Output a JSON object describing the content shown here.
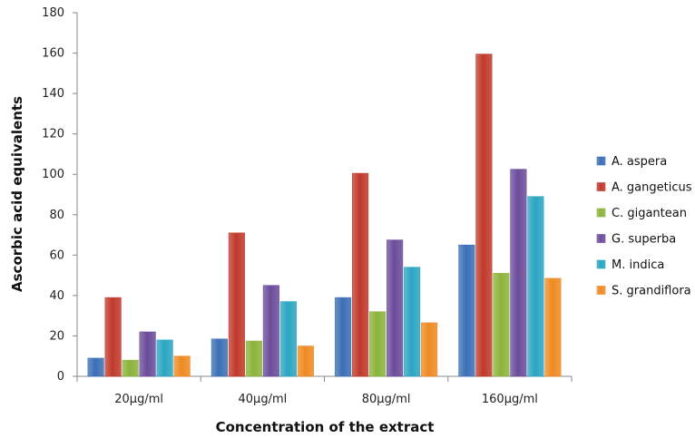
{
  "chart_data": {
    "type": "bar",
    "title": "",
    "xlabel": "Concentration of the extract",
    "ylabel": "Ascorbic acid equivalents",
    "categories": [
      "20µg/ml",
      "40µg/ml",
      "80µg/ml",
      "160µg/ml"
    ],
    "ylim": [
      0,
      180
    ],
    "yticks": [
      0,
      20,
      40,
      60,
      80,
      100,
      120,
      140,
      160,
      180
    ],
    "grid": false,
    "legend_position": "right",
    "series": [
      {
        "name": "A. aspera",
        "color": "#3b6fb6",
        "values": [
          9,
          18.5,
          39,
          65
        ]
      },
      {
        "name": "A. gangeticus",
        "color": "#c0392b",
        "values": [
          39,
          71,
          100.5,
          159.5
        ]
      },
      {
        "name": "C. gigantean",
        "color": "#8bb33a",
        "values": [
          8,
          17.5,
          32,
          51
        ]
      },
      {
        "name": "G. superba",
        "color": "#6b4c9a",
        "values": [
          22,
          45,
          67.5,
          102.5
        ]
      },
      {
        "name": "M. indica",
        "color": "#2aa5c2",
        "values": [
          18,
          37,
          54,
          89
        ]
      },
      {
        "name": "S. grandiflora",
        "color": "#ee8a22",
        "values": [
          10,
          15,
          26.5,
          48.5
        ]
      }
    ]
  }
}
